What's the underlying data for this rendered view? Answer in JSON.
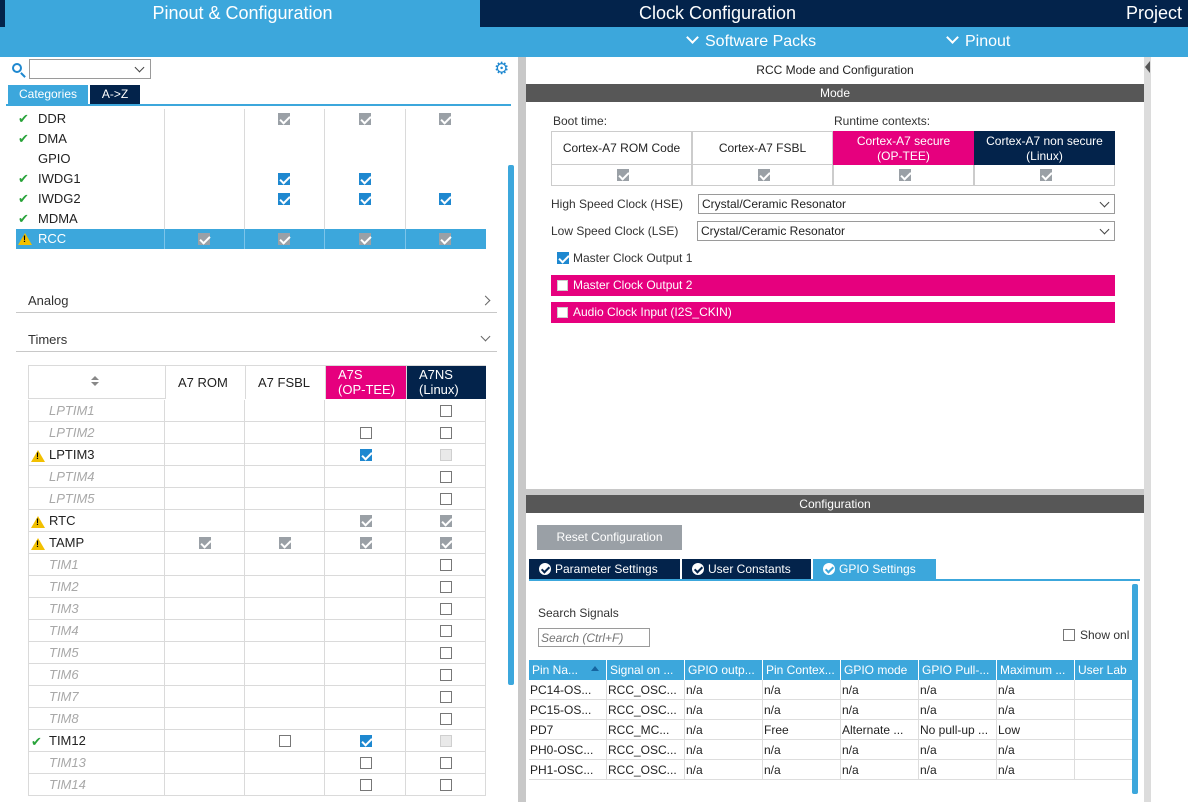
{
  "top_tabs": [
    {
      "label": "Pinout & Configuration",
      "active": true
    },
    {
      "label": "Clock Configuration",
      "active": false
    },
    {
      "label": "Project",
      "active": false
    }
  ],
  "sub_menu": [
    "Software Packs",
    "Pinout"
  ],
  "left": {
    "search_value": "",
    "tabs": [
      "Categories",
      "A->Z"
    ],
    "top_peripherals": [
      {
        "name": "DDR",
        "status": "ok",
        "cols": [
          "none",
          "gray",
          "gray",
          "gray"
        ]
      },
      {
        "name": "DMA",
        "status": "ok",
        "cols": [
          "none",
          "none",
          "none",
          "none"
        ]
      },
      {
        "name": "GPIO",
        "status": "none",
        "cols": [
          "none",
          "none",
          "none",
          "none"
        ]
      },
      {
        "name": "IWDG1",
        "status": "ok",
        "cols": [
          "none",
          "on",
          "on",
          "none"
        ]
      },
      {
        "name": "IWDG2",
        "status": "ok",
        "cols": [
          "none",
          "on",
          "on",
          "on"
        ]
      },
      {
        "name": "MDMA",
        "status": "ok",
        "cols": [
          "none",
          "none",
          "none",
          "none"
        ]
      },
      {
        "name": "RCC",
        "status": "warn",
        "selected": true,
        "cols": [
          "gray",
          "gray",
          "gray",
          "gray"
        ]
      }
    ],
    "sections": [
      "Analog",
      "Timers"
    ],
    "timers_headers": [
      "A7 ROM",
      "A7 FSBL",
      "A7S\n(OP-TEE)",
      "A7NS\n(Linux)"
    ],
    "timers": [
      {
        "name": "LPTIM1",
        "status": "none",
        "italic": true,
        "cols": [
          "none",
          "none",
          "none",
          "off"
        ]
      },
      {
        "name": "LPTIM2",
        "status": "none",
        "italic": true,
        "cols": [
          "none",
          "none",
          "off",
          "off"
        ]
      },
      {
        "name": "LPTIM3",
        "status": "warn",
        "italic": false,
        "cols": [
          "none",
          "none",
          "on",
          "dis"
        ]
      },
      {
        "name": "LPTIM4",
        "status": "none",
        "italic": true,
        "cols": [
          "none",
          "none",
          "none",
          "off"
        ]
      },
      {
        "name": "LPTIM5",
        "status": "none",
        "italic": true,
        "cols": [
          "none",
          "none",
          "none",
          "off"
        ]
      },
      {
        "name": "RTC",
        "status": "warn",
        "italic": false,
        "cols": [
          "none",
          "none",
          "gray",
          "gray"
        ]
      },
      {
        "name": "TAMP",
        "status": "warn",
        "italic": false,
        "cols": [
          "gray",
          "gray",
          "gray",
          "gray"
        ]
      },
      {
        "name": "TIM1",
        "status": "none",
        "italic": true,
        "cols": [
          "none",
          "none",
          "none",
          "off"
        ]
      },
      {
        "name": "TIM2",
        "status": "none",
        "italic": true,
        "cols": [
          "none",
          "none",
          "none",
          "off"
        ]
      },
      {
        "name": "TIM3",
        "status": "none",
        "italic": true,
        "cols": [
          "none",
          "none",
          "none",
          "off"
        ]
      },
      {
        "name": "TIM4",
        "status": "none",
        "italic": true,
        "cols": [
          "none",
          "none",
          "none",
          "off"
        ]
      },
      {
        "name": "TIM5",
        "status": "none",
        "italic": true,
        "cols": [
          "none",
          "none",
          "none",
          "off"
        ]
      },
      {
        "name": "TIM6",
        "status": "none",
        "italic": true,
        "cols": [
          "none",
          "none",
          "none",
          "off"
        ]
      },
      {
        "name": "TIM7",
        "status": "none",
        "italic": true,
        "cols": [
          "none",
          "none",
          "none",
          "off"
        ]
      },
      {
        "name": "TIM8",
        "status": "none",
        "italic": true,
        "cols": [
          "none",
          "none",
          "none",
          "off"
        ]
      },
      {
        "name": "TIM12",
        "status": "ok",
        "italic": false,
        "cols": [
          "none",
          "off",
          "on",
          "dis"
        ]
      },
      {
        "name": "TIM13",
        "status": "none",
        "italic": true,
        "cols": [
          "none",
          "none",
          "off",
          "off"
        ]
      },
      {
        "name": "TIM14",
        "status": "none",
        "italic": true,
        "cols": [
          "none",
          "none",
          "off",
          "off"
        ]
      }
    ]
  },
  "right": {
    "title": "RCC Mode and Configuration",
    "mode_bar": "Mode",
    "boot_time": "Boot time:",
    "runtime_contexts": "Runtime contexts:",
    "contexts": [
      {
        "label": "Cortex-A7 ROM Code",
        "style": "plain",
        "checked": "gray"
      },
      {
        "label": "Cortex-A7 FSBL",
        "style": "plain",
        "checked": "gray"
      },
      {
        "label": "Cortex-A7 secure\n(OP-TEE)",
        "style": "pink",
        "checked": "gray"
      },
      {
        "label": "Cortex-A7 non secure\n(Linux)",
        "style": "navy",
        "checked": "gray"
      }
    ],
    "hse_label": "High Speed Clock (HSE)",
    "hse_value": "Crystal/Ceramic Resonator",
    "lse_label": "Low Speed Clock (LSE)",
    "lse_value": "Crystal/Ceramic Resonator",
    "mco1_label": "Master Clock Output 1",
    "mco2_label": "Master Clock Output 2",
    "audio_label": "Audio Clock Input (I2S_CKIN)",
    "config_bar": "Configuration",
    "reset_button": "Reset Configuration",
    "cfg_tabs": [
      "Parameter Settings",
      "User Constants",
      "GPIO Settings"
    ],
    "search_signals": "Search Signals",
    "search_placeholder": "Search (Ctrl+F)",
    "show_only": "Show onl",
    "gpio_headers": [
      "Pin Na...",
      "Signal on ...",
      "GPIO outp...",
      "Pin Contex...",
      "GPIO mode",
      "GPIO Pull-...",
      "Maximum ...",
      "User Lab"
    ],
    "gpio_rows": [
      [
        "PC14-OS...",
        "RCC_OSC...",
        "n/a",
        "n/a",
        "n/a",
        "n/a",
        "n/a",
        ""
      ],
      [
        "PC15-OS...",
        "RCC_OSC...",
        "n/a",
        "n/a",
        "n/a",
        "n/a",
        "n/a",
        ""
      ],
      [
        "PD7",
        "RCC_MC...",
        "n/a",
        "Free",
        "Alternate ...",
        "No pull-up ...",
        "Low",
        ""
      ],
      [
        "PH0-OSC...",
        "RCC_OSC...",
        "n/a",
        "n/a",
        "n/a",
        "n/a",
        "n/a",
        ""
      ],
      [
        "PH1-OSC...",
        "RCC_OSC...",
        "n/a",
        "n/a",
        "n/a",
        "n/a",
        "n/a",
        ""
      ]
    ]
  },
  "colors": {
    "accent": "#3ca7dc",
    "navy": "#03234b",
    "pink": "#e6007e",
    "ok": "#29a33a",
    "warn": "#f2c000"
  }
}
